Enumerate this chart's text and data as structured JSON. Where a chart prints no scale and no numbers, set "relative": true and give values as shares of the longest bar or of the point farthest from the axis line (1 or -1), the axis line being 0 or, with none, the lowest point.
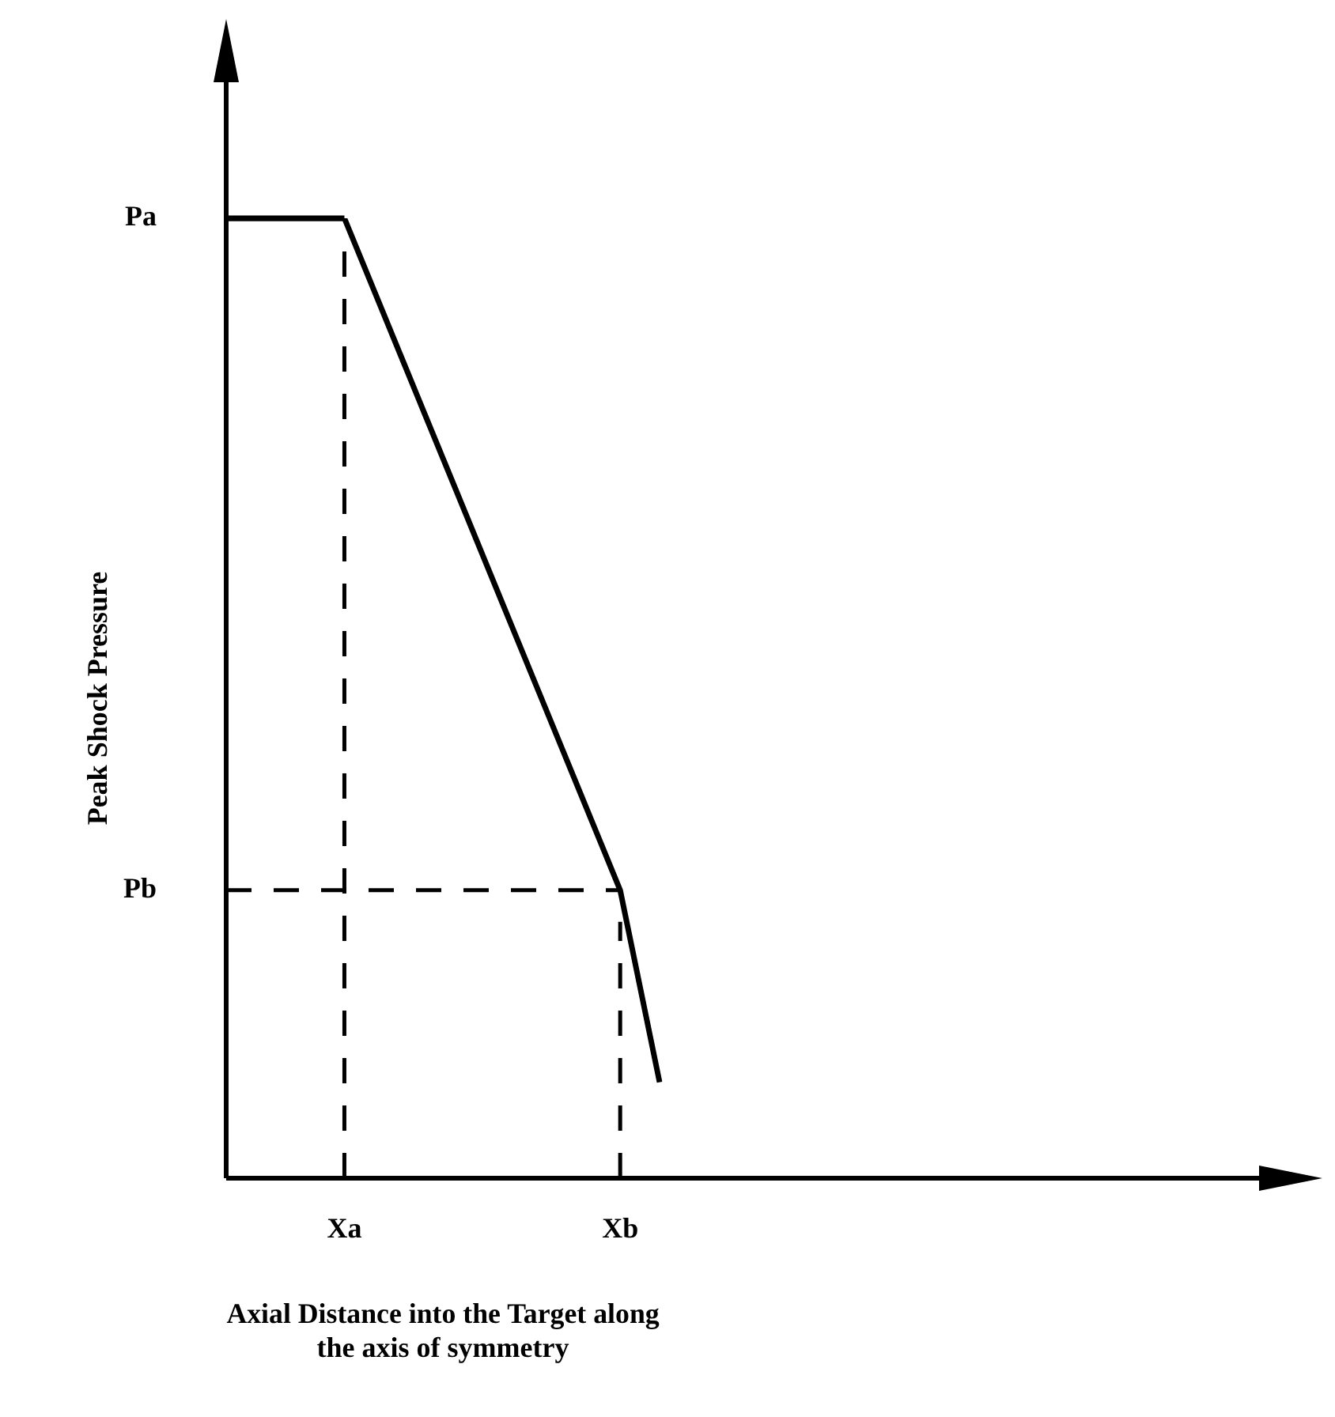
{
  "chart_data": {
    "type": "line",
    "relative": true,
    "xlabel": [
      "Axial Distance into the Target along",
      "the axis of symmetry"
    ],
    "ylabel": "Peak Shock Pressure",
    "categories": [
      null,
      null,
      null,
      "Xa",
      null,
      null,
      null,
      null,
      null,
      null,
      "Xb",
      null
    ],
    "tick_labels": "x",
    "grid": false,
    "legend": false,
    "marker": "none",
    "line_style": "solid",
    "ref_lines": [
      {
        "axis": "y",
        "value": 1,
        "label": "Pa",
        "line_style": "solid",
        "color": "#000000"
      },
      {
        "axis": "x",
        "value": "Xa",
        "line_style": "dashed",
        "color": "#000000"
      },
      {
        "axis": "x",
        "value": "Xb",
        "line_style": "dashed",
        "color": "#000000"
      },
      {
        "axis": "y",
        "value": 0.3,
        "label": "Pb",
        "line_style": "dashed",
        "color": "#000000"
      }
    ],
    "series": [
      {
        "color": "#000000",
        "values": [
          1,
          1,
          1,
          1,
          0.9,
          0.8,
          0.7,
          0.6,
          0.5,
          0.4,
          0.3,
          0.1
        ]
      }
    ]
  }
}
